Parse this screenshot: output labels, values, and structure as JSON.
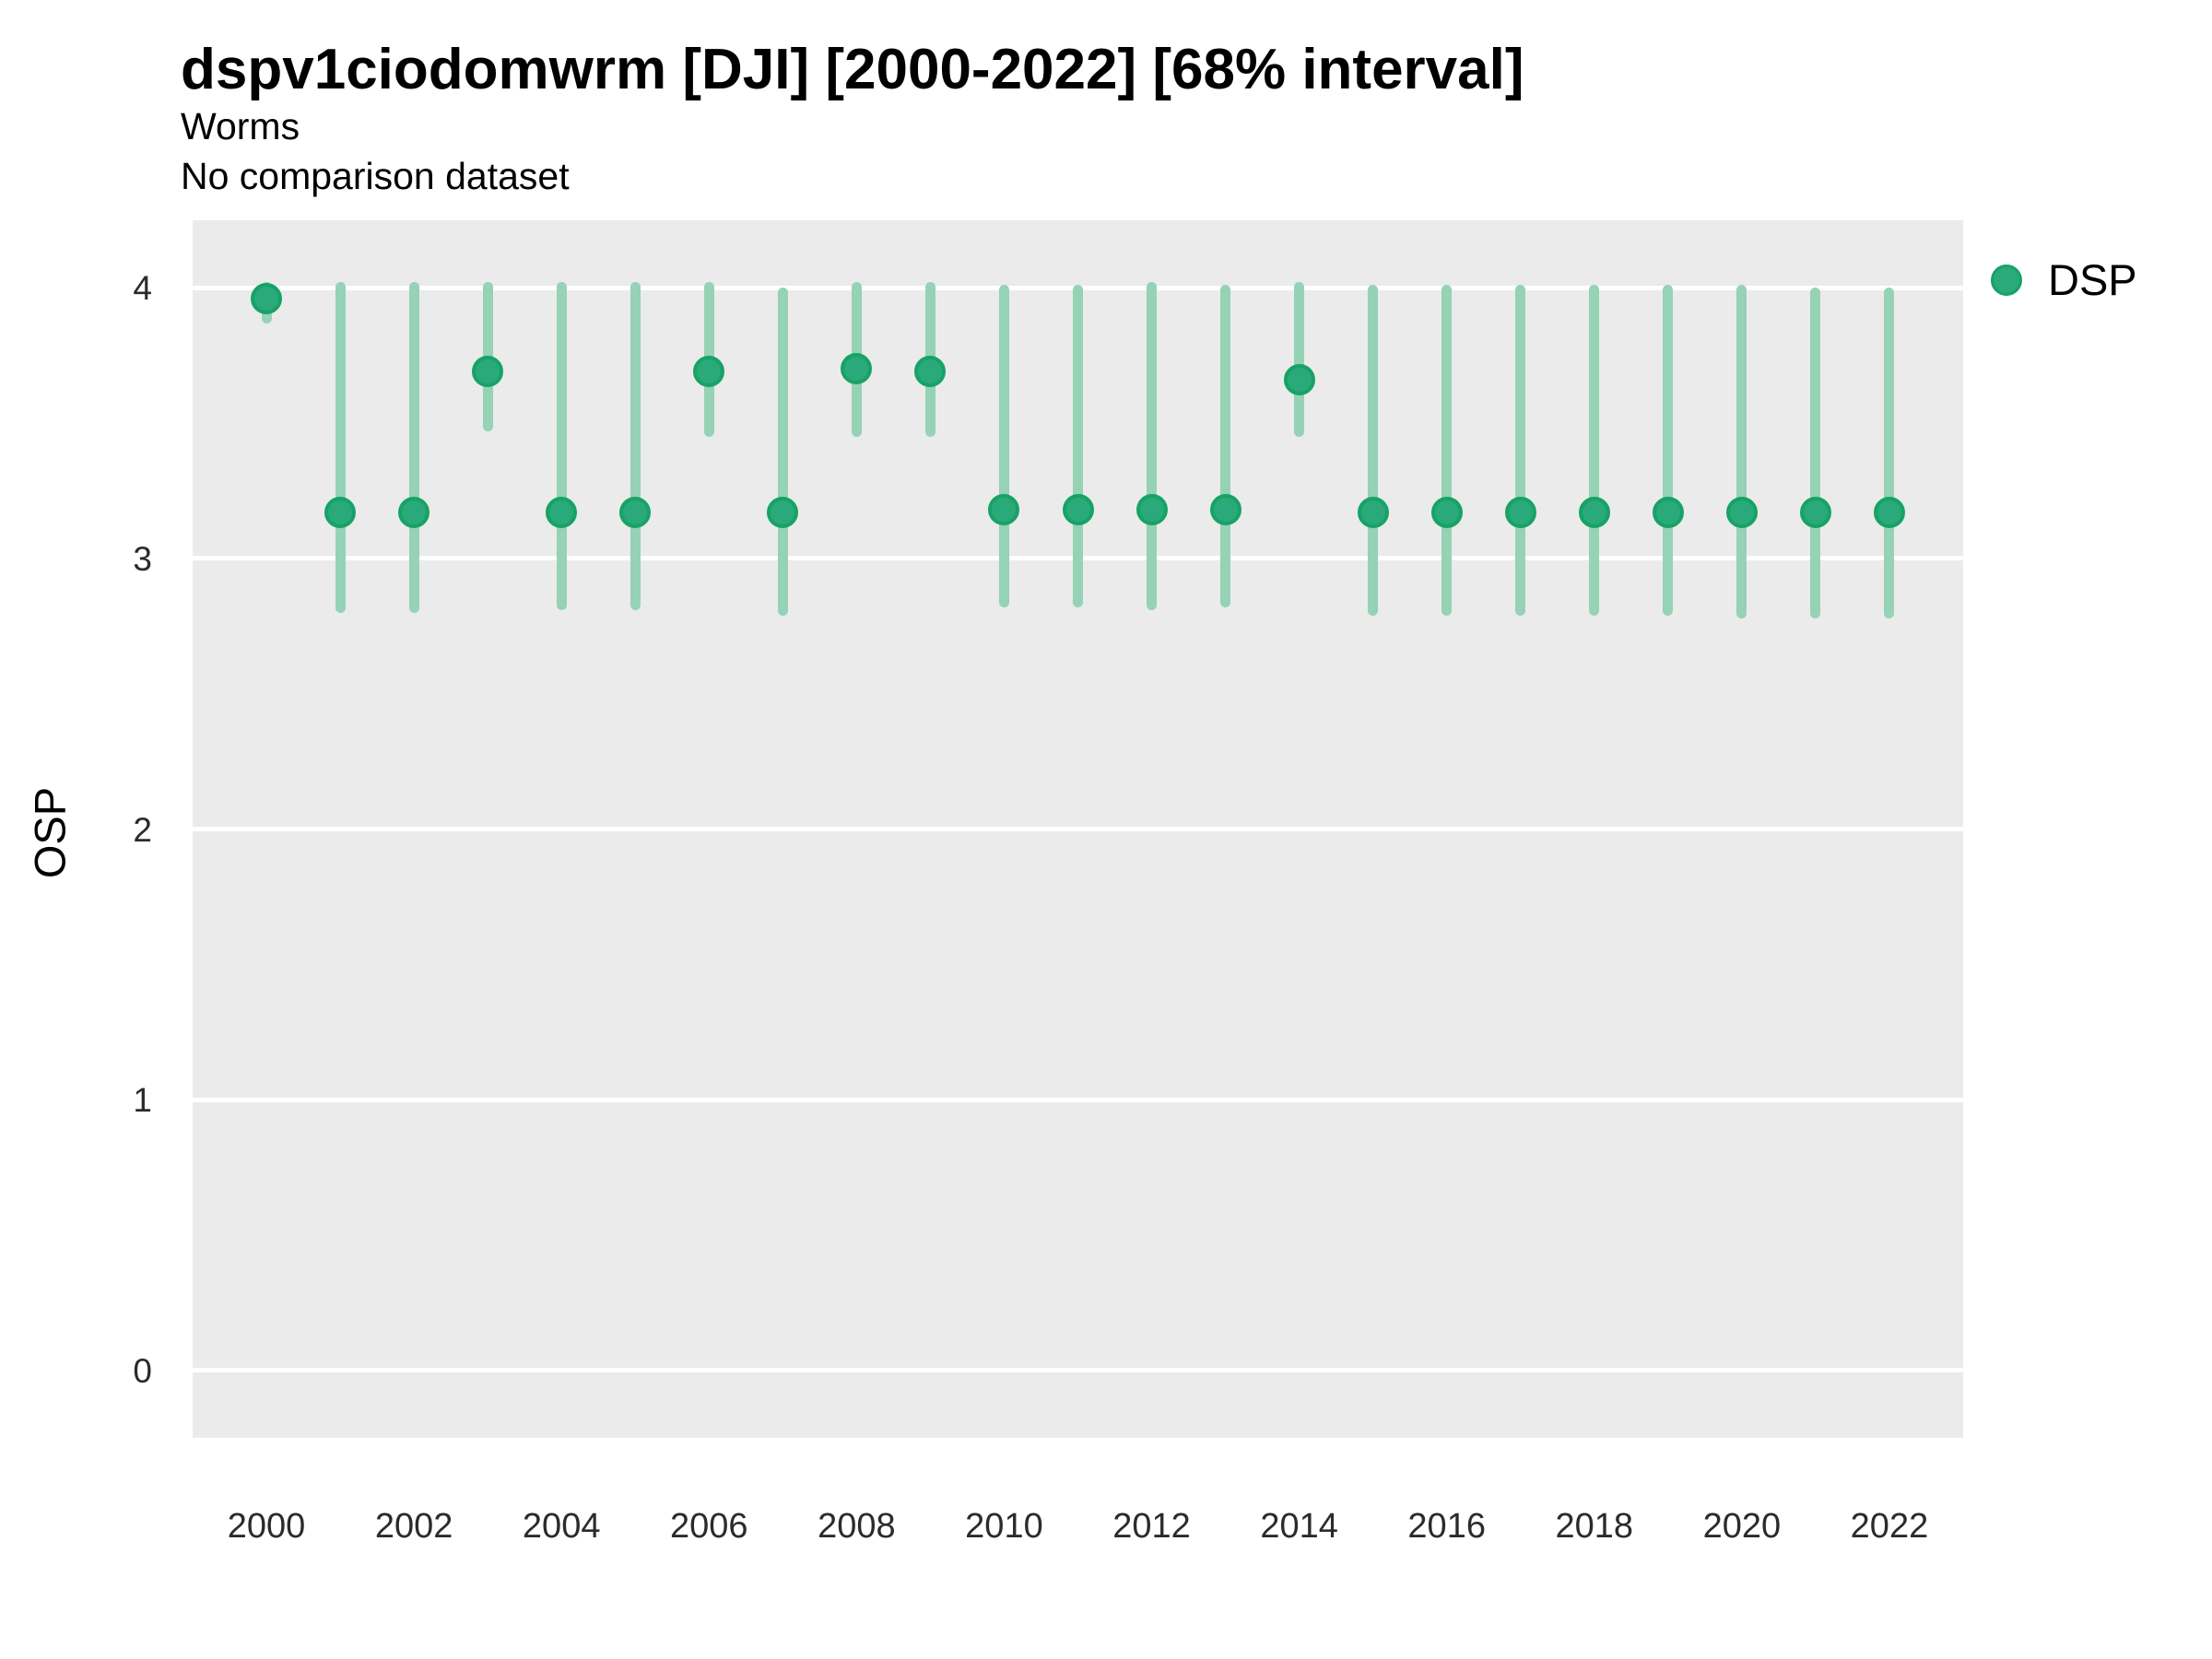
{
  "header": {
    "title": "dspv1ciodomwrm [DJI] [2000-2022] [68% interval]",
    "subtitle1": "Worms",
    "subtitle2": "No comparison dataset"
  },
  "axes": {
    "y_label": "OSP",
    "x_label": ""
  },
  "legend": {
    "position": "right",
    "items": [
      {
        "label": "DSP",
        "marker": "circle-icon"
      }
    ]
  },
  "colors": {
    "point_fill": "#2aa97a",
    "point_stroke": "#17a266",
    "interval_bar": "#95d2b6",
    "panel_bg": "#ebebeb",
    "gridline": "#ffffff",
    "tick_text": "#2b2b2b",
    "title_text": "#000000"
  },
  "chart_data": {
    "type": "scatter",
    "title": "dspv1ciodomwrm [DJI] [2000-2022] [68% interval]",
    "subtitle": "Worms",
    "note": "No comparison dataset",
    "xlabel": "",
    "ylabel": "OSP",
    "interval": "68%",
    "grid": "horizontal-major-only",
    "legend_position": "right",
    "x_domain": [
      1999,
      2023
    ],
    "y_domain": [
      -0.25,
      4.25
    ],
    "x_ticks": [
      2000,
      2002,
      2004,
      2006,
      2008,
      2010,
      2012,
      2014,
      2016,
      2018,
      2020,
      2022
    ],
    "y_ticks": [
      0,
      1,
      2,
      3,
      4
    ],
    "series": [
      {
        "name": "DSP",
        "points": [
          {
            "year": 2000,
            "value": 3.96,
            "lo": 3.89,
            "hi": 4.0
          },
          {
            "year": 2001,
            "value": 3.17,
            "lo": 2.82,
            "hi": 4.0
          },
          {
            "year": 2002,
            "value": 3.17,
            "lo": 2.82,
            "hi": 4.0
          },
          {
            "year": 2003,
            "value": 3.69,
            "lo": 3.49,
            "hi": 4.0
          },
          {
            "year": 2004,
            "value": 3.17,
            "lo": 2.83,
            "hi": 4.0
          },
          {
            "year": 2005,
            "value": 3.17,
            "lo": 2.83,
            "hi": 4.0
          },
          {
            "year": 2006,
            "value": 3.69,
            "lo": 3.47,
            "hi": 4.0
          },
          {
            "year": 2007,
            "value": 3.17,
            "lo": 2.81,
            "hi": 3.98
          },
          {
            "year": 2008,
            "value": 3.7,
            "lo": 3.47,
            "hi": 4.0
          },
          {
            "year": 2009,
            "value": 3.69,
            "lo": 3.47,
            "hi": 4.0
          },
          {
            "year": 2010,
            "value": 3.18,
            "lo": 2.84,
            "hi": 3.99
          },
          {
            "year": 2011,
            "value": 3.18,
            "lo": 2.84,
            "hi": 3.99
          },
          {
            "year": 2012,
            "value": 3.18,
            "lo": 2.83,
            "hi": 4.0
          },
          {
            "year": 2013,
            "value": 3.18,
            "lo": 2.84,
            "hi": 3.99
          },
          {
            "year": 2014,
            "value": 3.66,
            "lo": 3.47,
            "hi": 4.0
          },
          {
            "year": 2015,
            "value": 3.17,
            "lo": 2.81,
            "hi": 3.99
          },
          {
            "year": 2016,
            "value": 3.17,
            "lo": 2.81,
            "hi": 3.99
          },
          {
            "year": 2017,
            "value": 3.17,
            "lo": 2.81,
            "hi": 3.99
          },
          {
            "year": 2018,
            "value": 3.17,
            "lo": 2.81,
            "hi": 3.99
          },
          {
            "year": 2019,
            "value": 3.17,
            "lo": 2.81,
            "hi": 3.99
          },
          {
            "year": 2020,
            "value": 3.17,
            "lo": 2.8,
            "hi": 3.99
          },
          {
            "year": 2021,
            "value": 3.17,
            "lo": 2.8,
            "hi": 3.98
          },
          {
            "year": 2022,
            "value": 3.17,
            "lo": 2.8,
            "hi": 3.98
          }
        ]
      }
    ]
  }
}
